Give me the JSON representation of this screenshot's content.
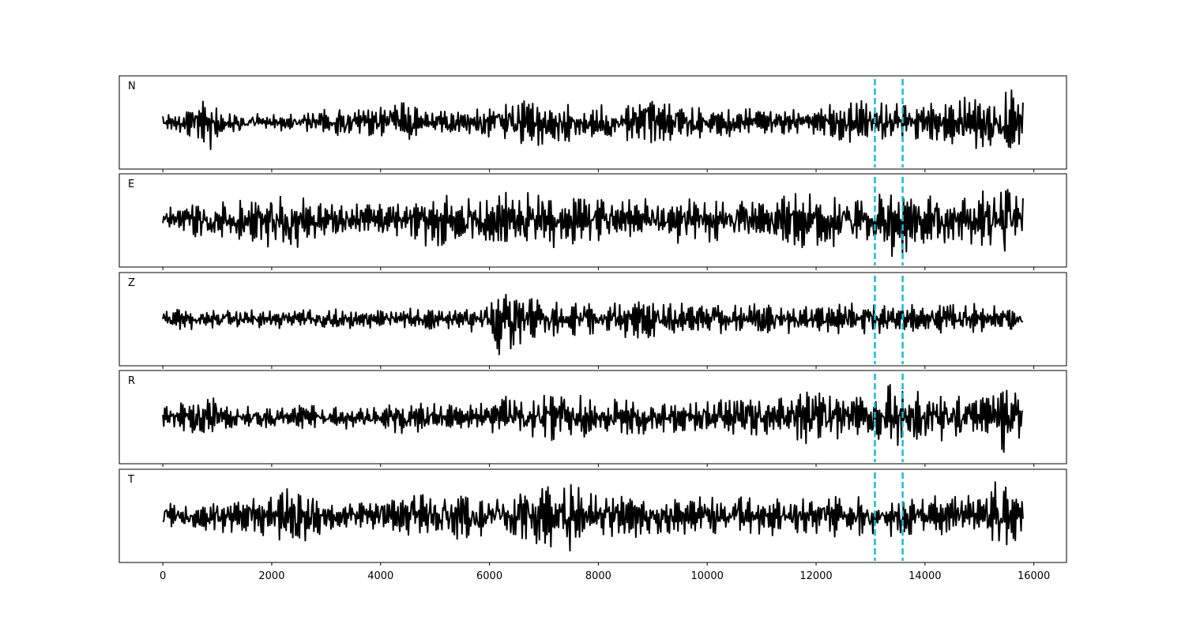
{
  "chart_data": {
    "type": "line",
    "layout": "stacked-panels",
    "shared_x_axis": true,
    "xlim": [
      -800,
      16600
    ],
    "x_ticks": [
      0,
      2000,
      4000,
      6000,
      8000,
      10000,
      12000,
      14000,
      16000
    ],
    "x_tick_labels": [
      "0",
      "2000",
      "4000",
      "6000",
      "8000",
      "10000",
      "12000",
      "14000",
      "16000"
    ],
    "y_ticks_visible": false,
    "grid": false,
    "trace_color": "#000000",
    "marker_color": "#17becf",
    "marker_style": "dashed",
    "vertical_markers": [
      13080,
      13590
    ],
    "sample_range": [
      0,
      15800
    ],
    "panels": [
      {
        "label": "N",
        "envelope": [
          [
            0,
            0.3
          ],
          [
            500,
            0.35
          ],
          [
            850,
            0.75
          ],
          [
            1100,
            0.3
          ],
          [
            2500,
            0.2
          ],
          [
            3000,
            0.35
          ],
          [
            4000,
            0.4
          ],
          [
            4400,
            0.55
          ],
          [
            5000,
            0.3
          ],
          [
            6000,
            0.4
          ],
          [
            6300,
            0.55
          ],
          [
            7000,
            0.6
          ],
          [
            8000,
            0.45
          ],
          [
            9000,
            0.55
          ],
          [
            10000,
            0.4
          ],
          [
            11000,
            0.35
          ],
          [
            12000,
            0.4
          ],
          [
            12600,
            0.6
          ],
          [
            13200,
            0.5
          ],
          [
            14000,
            0.5
          ],
          [
            14500,
            0.6
          ],
          [
            15000,
            0.7
          ],
          [
            15500,
            1.0
          ],
          [
            15800,
            0.6
          ]
        ]
      },
      {
        "label": "E",
        "envelope": [
          [
            0,
            0.35
          ],
          [
            1000,
            0.5
          ],
          [
            2400,
            0.75
          ],
          [
            3000,
            0.45
          ],
          [
            4000,
            0.45
          ],
          [
            5000,
            0.7
          ],
          [
            6000,
            0.5
          ],
          [
            6300,
            0.75
          ],
          [
            7000,
            0.7
          ],
          [
            7500,
            0.95
          ],
          [
            8000,
            0.6
          ],
          [
            9000,
            0.6
          ],
          [
            10000,
            0.55
          ],
          [
            11000,
            0.5
          ],
          [
            11500,
            0.7
          ],
          [
            12000,
            0.75
          ],
          [
            13000,
            0.5
          ],
          [
            13400,
            0.95
          ],
          [
            14000,
            0.65
          ],
          [
            15000,
            0.75
          ],
          [
            15500,
            0.95
          ],
          [
            15800,
            0.6
          ]
        ]
      },
      {
        "label": "Z",
        "envelope": [
          [
            0,
            0.2
          ],
          [
            500,
            0.3
          ],
          [
            1000,
            0.25
          ],
          [
            3000,
            0.25
          ],
          [
            5000,
            0.3
          ],
          [
            6000,
            0.35
          ],
          [
            6150,
            1.0
          ],
          [
            6600,
            0.75
          ],
          [
            7000,
            0.5
          ],
          [
            8000,
            0.45
          ],
          [
            9000,
            0.55
          ],
          [
            10000,
            0.35
          ],
          [
            11000,
            0.4
          ],
          [
            12000,
            0.35
          ],
          [
            13000,
            0.45
          ],
          [
            14000,
            0.35
          ],
          [
            15000,
            0.4
          ],
          [
            15800,
            0.35
          ]
        ]
      },
      {
        "label": "R",
        "envelope": [
          [
            0,
            0.3
          ],
          [
            500,
            0.45
          ],
          [
            850,
            0.8
          ],
          [
            1100,
            0.3
          ],
          [
            3000,
            0.3
          ],
          [
            4000,
            0.3
          ],
          [
            4400,
            0.5
          ],
          [
            5000,
            0.35
          ],
          [
            6000,
            0.4
          ],
          [
            6300,
            0.55
          ],
          [
            7000,
            0.6
          ],
          [
            7300,
            0.7
          ],
          [
            8000,
            0.45
          ],
          [
            9000,
            0.5
          ],
          [
            10000,
            0.45
          ],
          [
            11000,
            0.5
          ],
          [
            11800,
            0.7
          ],
          [
            13000,
            0.55
          ],
          [
            13400,
            0.9
          ],
          [
            14000,
            0.6
          ],
          [
            14500,
            0.65
          ],
          [
            15000,
            0.55
          ],
          [
            15500,
            1.0
          ],
          [
            15800,
            0.6
          ]
        ]
      },
      {
        "label": "T",
        "envelope": [
          [
            0,
            0.3
          ],
          [
            1000,
            0.4
          ],
          [
            2400,
            0.8
          ],
          [
            3000,
            0.4
          ],
          [
            4000,
            0.35
          ],
          [
            5000,
            0.75
          ],
          [
            6000,
            0.55
          ],
          [
            6300,
            0.7
          ],
          [
            7000,
            0.75
          ],
          [
            7500,
            1.0
          ],
          [
            8000,
            0.6
          ],
          [
            9000,
            0.55
          ],
          [
            10000,
            0.55
          ],
          [
            11000,
            0.5
          ],
          [
            12000,
            0.55
          ],
          [
            13000,
            0.55
          ],
          [
            13600,
            0.6
          ],
          [
            14000,
            0.5
          ],
          [
            15000,
            0.55
          ],
          [
            15400,
            1.0
          ],
          [
            15800,
            0.55
          ]
        ]
      }
    ]
  }
}
